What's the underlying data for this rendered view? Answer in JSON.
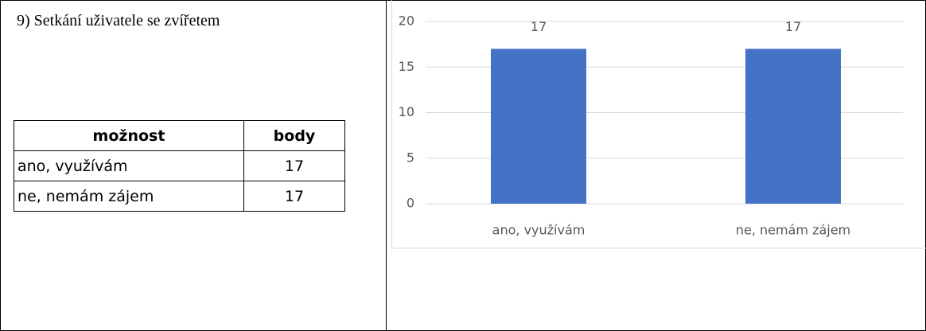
{
  "heading": "9) Setkání uživatele se zvířetem",
  "table": {
    "header": [
      "možnost",
      "body"
    ],
    "rows": [
      [
        "ano, využívám",
        17
      ],
      [
        "ne, nemám zájem",
        17
      ]
    ]
  },
  "chart_data": {
    "type": "bar",
    "categories": [
      "ano, využívám",
      "ne, nemám zájem"
    ],
    "values": [
      17,
      17
    ],
    "color": "#4472c4",
    "ylim": [
      0,
      20
    ],
    "yticks": [
      0,
      5,
      10,
      15,
      20
    ],
    "grid": true
  }
}
